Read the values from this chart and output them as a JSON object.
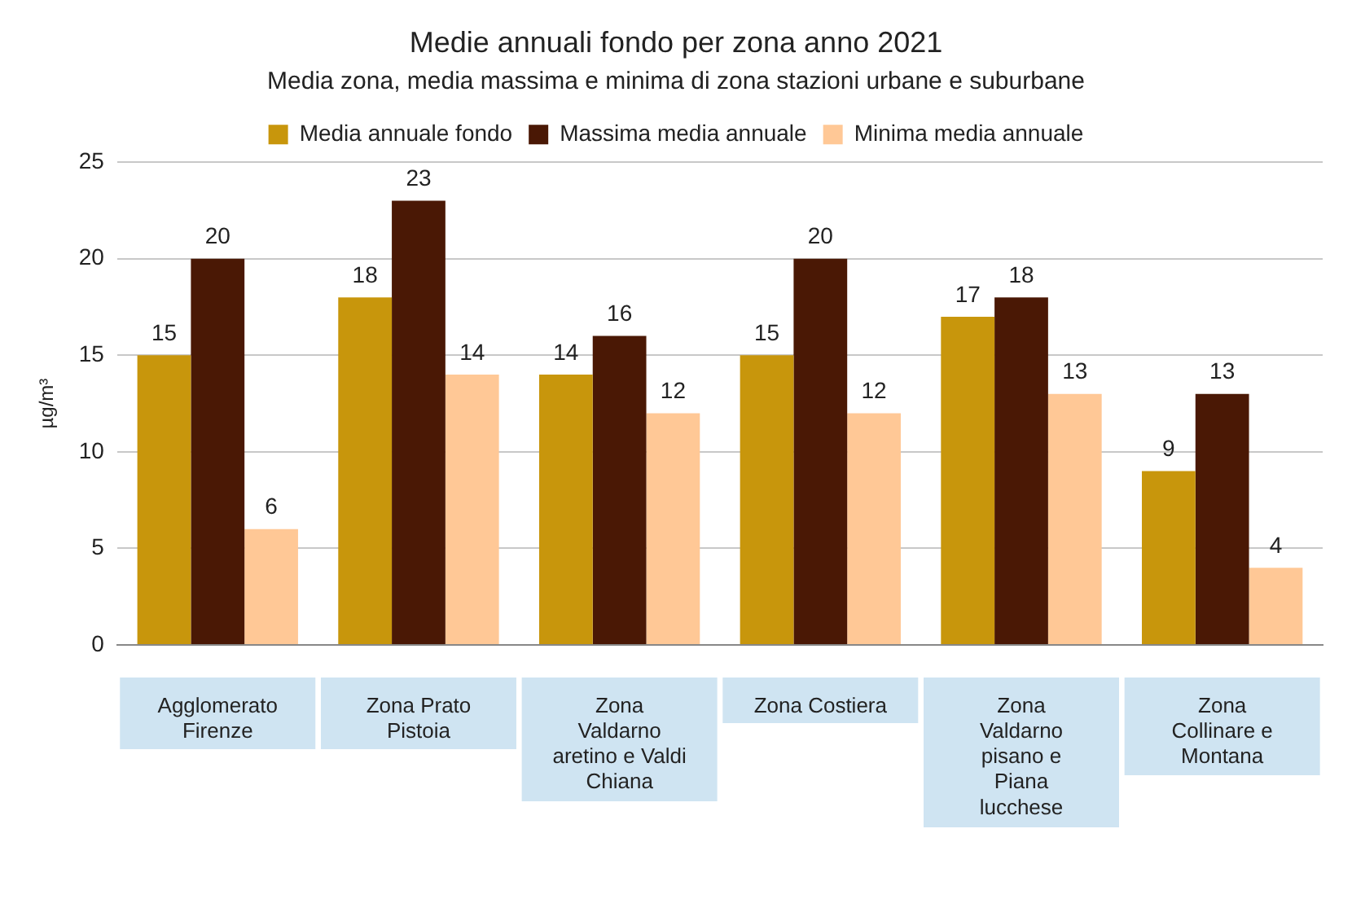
{
  "chart_data": {
    "type": "bar",
    "title": "Medie annuali fondo per zona anno 2021",
    "subtitle": "Media zona, media massima e minima di zona stazioni urbane e suburbane",
    "ylabel": "µg/m³",
    "categories": [
      "Agglomerato Firenze",
      "Zona Prato Pistoia",
      "Zona Valdarno aretino e Valdi Chiana",
      "Zona Costiera",
      "Zona Valdarno pisano e Piana lucchese",
      "Zona Collinare e Montana"
    ],
    "series": [
      {
        "name": "Media annuale fondo",
        "color": "#c8960c",
        "values": [
          15,
          18,
          14,
          15,
          17,
          9
        ]
      },
      {
        "name": "Massima media annuale",
        "color": "#4a1805",
        "values": [
          20,
          23,
          16,
          20,
          18,
          13
        ]
      },
      {
        "name": "Minima media annuale",
        "color": "#ffc896",
        "values": [
          6,
          14,
          12,
          12,
          13,
          4
        ]
      }
    ],
    "ylim": [
      0,
      25
    ],
    "yticks": [
      0,
      5,
      10,
      15,
      20,
      25
    ],
    "grid": "y",
    "legend": "top",
    "data_labels": true
  }
}
